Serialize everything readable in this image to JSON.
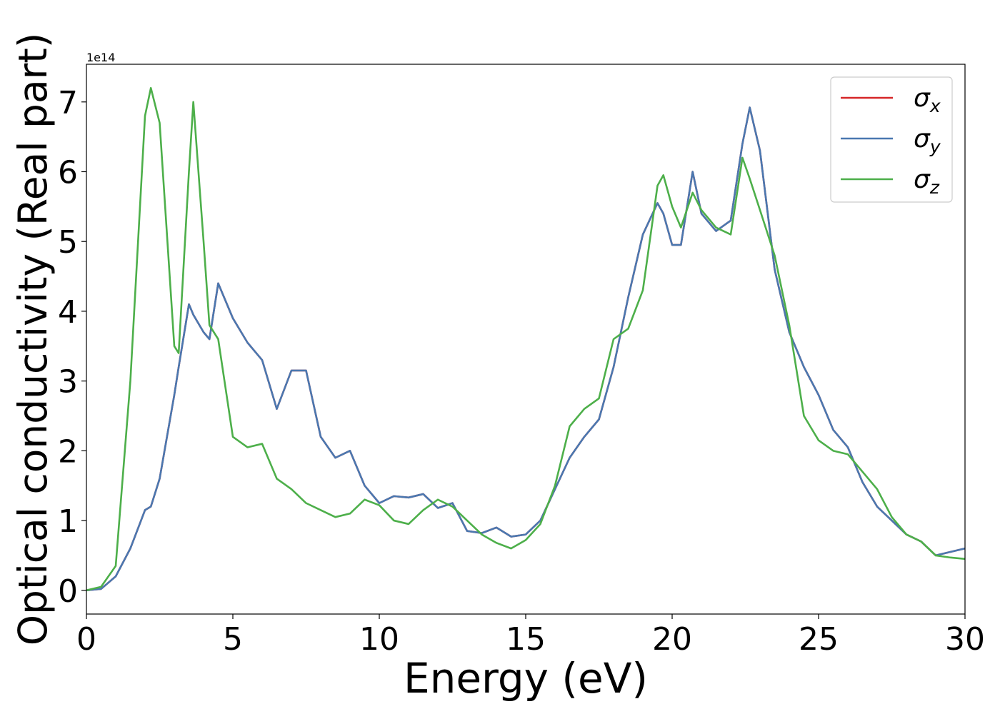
{
  "chart_data": {
    "type": "line",
    "x_label": "Energy (eV)",
    "y_label": "Optical conductivity (Real part)",
    "y_offset_label": "1e14",
    "xlim": [
      0,
      30
    ],
    "ylim": [
      -0.34,
      7.54
    ],
    "xticks": [
      0,
      5,
      10,
      15,
      20,
      25,
      30
    ],
    "yticks": [
      0,
      1,
      2,
      3,
      4,
      5,
      6,
      7
    ],
    "legend": "upper right",
    "x": [
      0,
      0.5,
      1,
      1.5,
      2,
      2.2,
      2.5,
      3,
      3.15,
      3.5,
      3.65,
      4,
      4.2,
      4.5,
      5,
      5.5,
      6,
      6.5,
      7,
      7.5,
      8,
      8.5,
      9,
      9.5,
      10,
      10.5,
      11,
      11.5,
      12,
      12.5,
      13,
      13.5,
      14,
      14.5,
      15,
      15.5,
      16,
      16.5,
      17,
      17.5,
      18,
      18.5,
      19,
      19.5,
      19.7,
      20,
      20.3,
      20.7,
      21,
      21.5,
      22,
      22.4,
      22.65,
      23,
      23.5,
      24,
      24.5,
      25,
      25.5,
      26,
      26.5,
      27,
      27.5,
      28,
      28.5,
      29,
      29.5,
      30
    ],
    "series": [
      {
        "name": "σx",
        "color": "#d62728",
        "values": [
          0,
          0.02,
          0.2,
          0.6,
          1.15,
          1.2,
          1.6,
          2.8,
          3.2,
          4.1,
          3.95,
          3.7,
          3.6,
          4.4,
          3.9,
          3.55,
          3.3,
          2.6,
          3.15,
          3.15,
          2.2,
          1.9,
          2.0,
          1.5,
          1.25,
          1.35,
          1.33,
          1.38,
          1.18,
          1.25,
          0.85,
          0.82,
          0.9,
          0.77,
          0.8,
          1.0,
          1.45,
          1.9,
          2.2,
          2.45,
          3.2,
          4.2,
          5.1,
          5.55,
          5.4,
          4.95,
          4.95,
          6.0,
          5.4,
          5.15,
          5.3,
          6.4,
          6.92,
          6.3,
          4.6,
          3.7,
          3.2,
          2.8,
          2.3,
          2.05,
          1.55,
          1.2,
          1.0,
          0.8,
          0.7,
          0.5,
          0.55,
          0.6
        ]
      },
      {
        "name": "σy",
        "color": "#4a78b0",
        "values": [
          0,
          0.02,
          0.2,
          0.6,
          1.15,
          1.2,
          1.6,
          2.8,
          3.2,
          4.1,
          3.95,
          3.7,
          3.6,
          4.4,
          3.9,
          3.55,
          3.3,
          2.6,
          3.15,
          3.15,
          2.2,
          1.9,
          2.0,
          1.5,
          1.25,
          1.35,
          1.33,
          1.38,
          1.18,
          1.25,
          0.85,
          0.82,
          0.9,
          0.77,
          0.8,
          1.0,
          1.45,
          1.9,
          2.2,
          2.45,
          3.2,
          4.2,
          5.1,
          5.55,
          5.4,
          4.95,
          4.95,
          6.0,
          5.4,
          5.15,
          5.3,
          6.4,
          6.92,
          6.3,
          4.6,
          3.7,
          3.2,
          2.8,
          2.3,
          2.05,
          1.55,
          1.2,
          1.0,
          0.8,
          0.7,
          0.5,
          0.55,
          0.6
        ]
      },
      {
        "name": "σz",
        "color": "#4daf4a",
        "values": [
          0,
          0.05,
          0.35,
          3.0,
          6.8,
          7.2,
          6.7,
          3.5,
          3.4,
          6.0,
          7.0,
          5.0,
          3.8,
          3.6,
          2.2,
          2.05,
          2.1,
          1.6,
          1.45,
          1.25,
          1.15,
          1.05,
          1.1,
          1.3,
          1.22,
          1.0,
          0.95,
          1.15,
          1.3,
          1.2,
          1.0,
          0.8,
          0.68,
          0.6,
          0.72,
          0.95,
          1.5,
          2.35,
          2.6,
          2.75,
          3.6,
          3.75,
          4.3,
          5.8,
          5.95,
          5.5,
          5.2,
          5.7,
          5.45,
          5.2,
          5.1,
          6.2,
          5.9,
          5.45,
          4.8,
          3.8,
          2.5,
          2.15,
          2.0,
          1.95,
          1.7,
          1.45,
          1.05,
          0.8,
          0.7,
          0.5,
          0.47,
          0.45
        ]
      }
    ]
  }
}
